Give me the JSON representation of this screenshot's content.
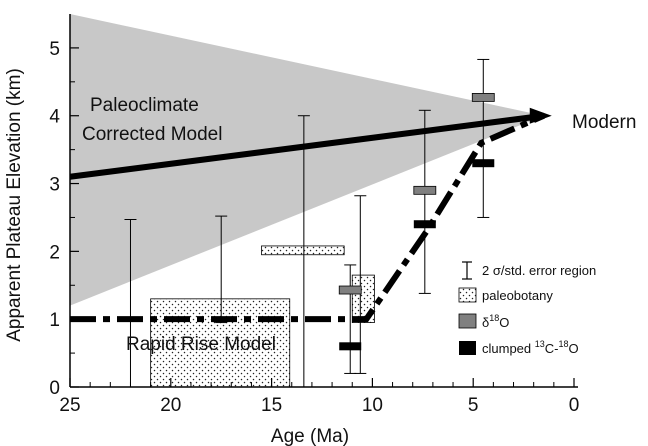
{
  "chart_data": {
    "type": "line",
    "xlabel": "Age (Ma)",
    "ylabel": "Apparent Plateau Elevation (km)",
    "xlim": [
      25,
      0
    ],
    "ylim": [
      0,
      5.5
    ],
    "x_ticks": [
      25,
      20,
      15,
      10,
      5,
      0
    ],
    "y_ticks": [
      0,
      1,
      2,
      3,
      4,
      5
    ],
    "grid": false,
    "legend_position": "bottom-right",
    "annotations": {
      "paleoclimate_l1": "Paleoclimate",
      "paleoclimate_l2": "Corrected Model",
      "modern": "Modern",
      "rapid_rise": "Rapid Rise Model"
    },
    "gray_wedge": {
      "apex": [
        1.5,
        4.0
      ],
      "left_top": [
        25,
        5.5
      ],
      "left_bottom": [
        25,
        1.2
      ],
      "color": "#c8c8c8"
    },
    "paleoclimate_line": {
      "points": [
        [
          25,
          3.1
        ],
        [
          1.5,
          4.0
        ]
      ],
      "color": "#000000"
    },
    "rapid_rise_line": {
      "points": [
        [
          25,
          1.0
        ],
        [
          10.3,
          1.0
        ],
        [
          7.3,
          2.3
        ],
        [
          4.6,
          3.6
        ],
        [
          1.5,
          4.0
        ]
      ],
      "color": "#000000",
      "dashed": true
    },
    "error_bars": [
      {
        "x": 22.0,
        "low": 0.0,
        "high": 2.47
      },
      {
        "x": 17.5,
        "low": 0.95,
        "high": 2.52
      },
      {
        "x": 13.4,
        "low": 0.0,
        "high": 4.0
      },
      {
        "x": 11.1,
        "low": 0.2,
        "high": 1.8
      },
      {
        "x": 10.6,
        "low": 0.2,
        "high": 2.82
      },
      {
        "x": 7.4,
        "low": 1.38,
        "high": 4.08
      },
      {
        "x": 4.5,
        "low": 2.5,
        "high": 4.83
      }
    ],
    "paleobotany_boxes": [
      {
        "x_from": 21.0,
        "x_to": 14.1,
        "y_from": 0.0,
        "y_to": 1.3
      },
      {
        "x_from": 15.5,
        "x_to": 11.4,
        "y_from": 1.95,
        "y_to": 2.08
      },
      {
        "x_from": 11.0,
        "x_to": 9.9,
        "y_from": 0.95,
        "y_to": 1.65
      }
    ],
    "d18O_points": [
      {
        "x": 11.1,
        "y": 1.43
      },
      {
        "x": 7.4,
        "y": 2.9
      },
      {
        "x": 4.5,
        "y": 4.27
      }
    ],
    "clumped_points": [
      {
        "x": 11.1,
        "y": 0.6
      },
      {
        "x": 7.4,
        "y": 2.4
      },
      {
        "x": 4.5,
        "y": 3.3
      }
    ],
    "legend": [
      {
        "key": "errorbar",
        "label": "2 σ/std. error region"
      },
      {
        "key": "paleobotany",
        "label": "paleobotany"
      },
      {
        "key": "d18O",
        "label_base": "δ",
        "label_sup": "18",
        "label_rest": "O",
        "color": "#808080"
      },
      {
        "key": "clumped",
        "label_base": "clumped ",
        "label_sup": "13",
        "label_mid": "C-",
        "label_sup2": "18",
        "label_rest": "O",
        "color": "#000000"
      }
    ]
  }
}
